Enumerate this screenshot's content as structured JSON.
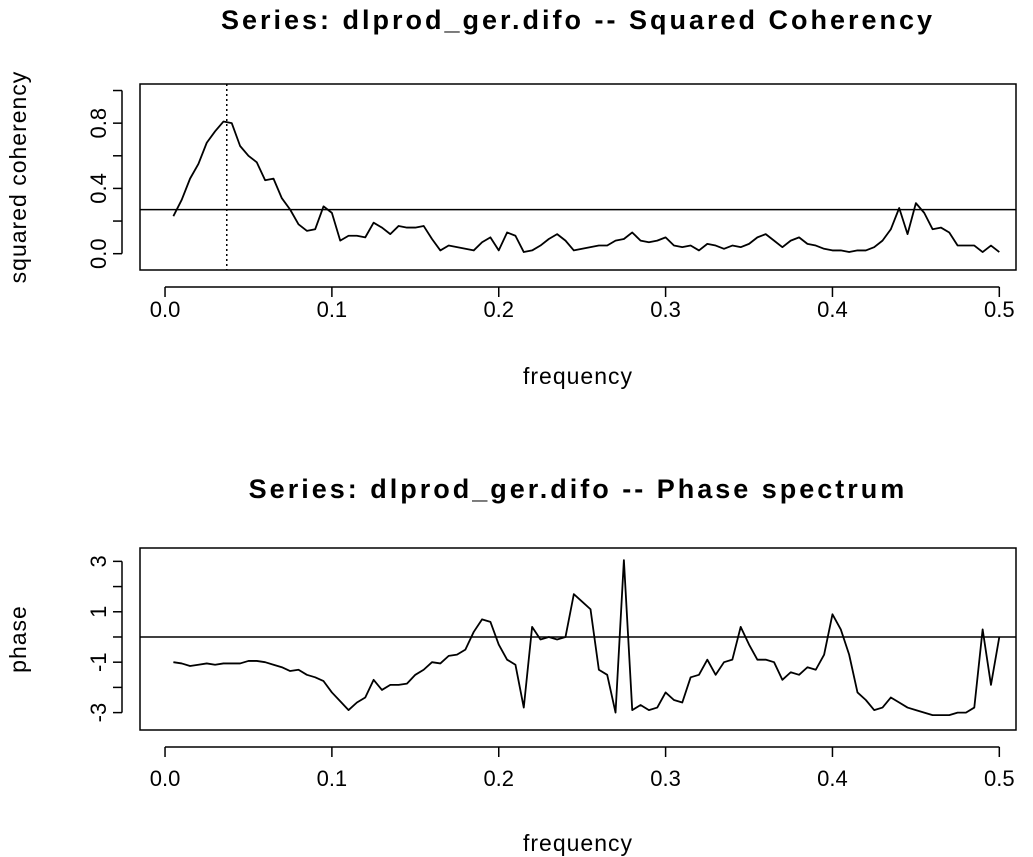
{
  "chart_data": [
    {
      "type": "line",
      "title": "Series: dlprod_ger.difo -- Squared Coherency",
      "x_label": "frequency",
      "y_label": "squared coherency",
      "x": [
        0.005,
        0.01,
        0.015,
        0.02,
        0.025,
        0.03,
        0.035,
        0.04,
        0.045,
        0.05,
        0.055,
        0.06,
        0.065,
        0.07,
        0.075,
        0.08,
        0.085,
        0.09,
        0.095,
        0.1,
        0.105,
        0.11,
        0.115,
        0.12,
        0.125,
        0.13,
        0.135,
        0.14,
        0.145,
        0.15,
        0.155,
        0.16,
        0.165,
        0.17,
        0.175,
        0.18,
        0.185,
        0.19,
        0.195,
        0.2,
        0.205,
        0.21,
        0.215,
        0.22,
        0.225,
        0.23,
        0.235,
        0.24,
        0.245,
        0.25,
        0.255,
        0.26,
        0.265,
        0.27,
        0.275,
        0.28,
        0.285,
        0.29,
        0.295,
        0.3,
        0.305,
        0.31,
        0.315,
        0.32,
        0.325,
        0.33,
        0.335,
        0.34,
        0.345,
        0.35,
        0.355,
        0.36,
        0.365,
        0.37,
        0.375,
        0.38,
        0.385,
        0.39,
        0.395,
        0.4,
        0.405,
        0.41,
        0.415,
        0.42,
        0.425,
        0.43,
        0.435,
        0.44,
        0.445,
        0.45,
        0.455,
        0.46,
        0.465,
        0.47,
        0.475,
        0.48,
        0.485,
        0.49,
        0.495,
        0.5
      ],
      "values": [
        0.23,
        0.33,
        0.46,
        0.55,
        0.68,
        0.75,
        0.81,
        0.8,
        0.66,
        0.6,
        0.56,
        0.45,
        0.46,
        0.34,
        0.27,
        0.18,
        0.14,
        0.15,
        0.29,
        0.25,
        0.08,
        0.11,
        0.11,
        0.1,
        0.19,
        0.16,
        0.12,
        0.17,
        0.16,
        0.16,
        0.17,
        0.09,
        0.02,
        0.05,
        0.04,
        0.03,
        0.02,
        0.07,
        0.1,
        0.02,
        0.13,
        0.11,
        0.01,
        0.02,
        0.05,
        0.09,
        0.12,
        0.08,
        0.02,
        0.03,
        0.04,
        0.05,
        0.05,
        0.08,
        0.09,
        0.13,
        0.08,
        0.07,
        0.08,
        0.1,
        0.05,
        0.04,
        0.05,
        0.02,
        0.06,
        0.05,
        0.03,
        0.05,
        0.04,
        0.06,
        0.1,
        0.12,
        0.08,
        0.04,
        0.08,
        0.1,
        0.06,
        0.05,
        0.03,
        0.02,
        0.02,
        0.01,
        0.02,
        0.02,
        0.04,
        0.08,
        0.15,
        0.28,
        0.12,
        0.31,
        0.25,
        0.15,
        0.16,
        0.13,
        0.05,
        0.05,
        0.05,
        0.01,
        0.05,
        0.01
      ],
      "color": "#000000",
      "xlim": [
        -0.015,
        0.51
      ],
      "ylim": [
        -0.1,
        1.04
      ],
      "xticks": [
        {
          "value": 0,
          "label": "0.0"
        },
        0.1,
        0.2,
        0.3,
        0.4,
        0.5
      ],
      "yticks": [
        {
          "value": 0,
          "label": "0.0"
        },
        0.4,
        0.8
      ],
      "yminor": [
        0.2,
        0.6,
        1.0
      ],
      "hlines": [
        0.27
      ],
      "vlines": [
        0.037
      ]
    },
    {
      "type": "line",
      "title": "Series: dlprod_ger.difo  -- Phase spectrum",
      "x_label": "frequency",
      "y_label": "phase",
      "x": [
        0.005,
        0.01,
        0.015,
        0.02,
        0.025,
        0.03,
        0.035,
        0.04,
        0.045,
        0.05,
        0.055,
        0.06,
        0.065,
        0.07,
        0.075,
        0.08,
        0.085,
        0.09,
        0.095,
        0.1,
        0.105,
        0.11,
        0.115,
        0.12,
        0.125,
        0.13,
        0.135,
        0.14,
        0.145,
        0.15,
        0.155,
        0.16,
        0.165,
        0.17,
        0.175,
        0.18,
        0.185,
        0.19,
        0.195,
        0.2,
        0.205,
        0.21,
        0.215,
        0.22,
        0.225,
        0.23,
        0.235,
        0.24,
        0.245,
        0.25,
        0.255,
        0.26,
        0.265,
        0.27,
        0.275,
        0.28,
        0.285,
        0.29,
        0.295,
        0.3,
        0.305,
        0.31,
        0.315,
        0.32,
        0.325,
        0.33,
        0.335,
        0.34,
        0.345,
        0.35,
        0.355,
        0.36,
        0.365,
        0.37,
        0.375,
        0.38,
        0.385,
        0.39,
        0.395,
        0.4,
        0.405,
        0.41,
        0.415,
        0.42,
        0.425,
        0.43,
        0.435,
        0.44,
        0.445,
        0.45,
        0.455,
        0.46,
        0.465,
        0.47,
        0.475,
        0.48,
        0.485,
        0.49,
        0.495,
        0.5
      ],
      "values": [
        -1.0,
        -1.05,
        -1.15,
        -1.1,
        -1.05,
        -1.1,
        -1.05,
        -1.05,
        -1.05,
        -0.95,
        -0.95,
        -1.0,
        -1.1,
        -1.2,
        -1.35,
        -1.3,
        -1.5,
        -1.6,
        -1.75,
        -2.2,
        -2.55,
        -2.9,
        -2.6,
        -2.4,
        -1.7,
        -2.1,
        -1.9,
        -1.9,
        -1.85,
        -1.5,
        -1.3,
        -1.0,
        -1.05,
        -0.75,
        -0.7,
        -0.5,
        0.2,
        0.7,
        0.6,
        -0.3,
        -0.9,
        -1.1,
        -2.8,
        0.4,
        -0.1,
        0.0,
        -0.1,
        0.0,
        1.7,
        1.4,
        1.1,
        -1.3,
        -1.5,
        -3.0,
        3.05,
        -2.9,
        -2.7,
        -2.9,
        -2.8,
        -2.2,
        -2.5,
        -2.6,
        -1.6,
        -1.5,
        -0.9,
        -1.5,
        -1.0,
        -0.9,
        0.4,
        -0.3,
        -0.9,
        -0.9,
        -1.0,
        -1.7,
        -1.4,
        -1.5,
        -1.2,
        -1.3,
        -0.7,
        0.9,
        0.3,
        -0.7,
        -2.2,
        -2.5,
        -2.9,
        -2.8,
        -2.4,
        -2.6,
        -2.8,
        -2.9,
        -3.0,
        -3.1,
        -3.1,
        -3.1,
        -3.0,
        -3.0,
        -2.8,
        0.3,
        -1.9,
        0.0
      ],
      "color": "#000000",
      "xlim": [
        -0.015,
        0.51
      ],
      "ylim": [
        -3.69,
        3.53
      ],
      "xticks": [
        {
          "value": 0,
          "label": "0.0"
        },
        0.1,
        0.2,
        0.3,
        0.4,
        0.5
      ],
      "yticks": [
        -3,
        -1,
        1,
        3
      ],
      "yminor": [
        -2,
        0,
        2
      ],
      "hlines": [
        0
      ]
    }
  ]
}
